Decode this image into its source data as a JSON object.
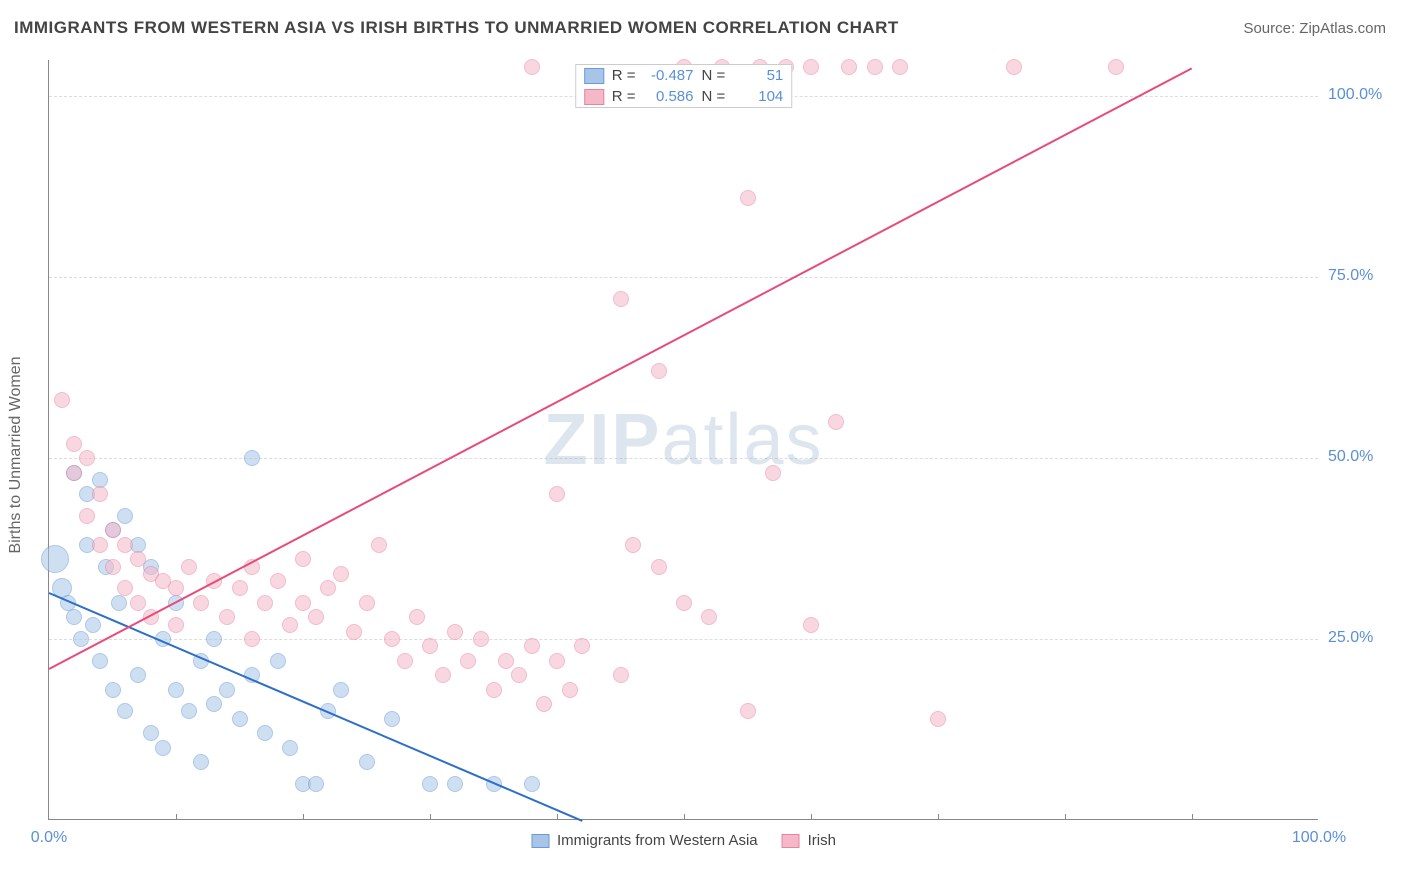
{
  "title": "IMMIGRANTS FROM WESTERN ASIA VS IRISH BIRTHS TO UNMARRIED WOMEN CORRELATION CHART",
  "source": "Source: ZipAtlas.com",
  "y_axis_label": "Births to Unmarried Women",
  "watermark_bold": "ZIP",
  "watermark_light": "atlas",
  "chart": {
    "type": "scatter",
    "xlim": [
      0,
      100
    ],
    "ylim": [
      0,
      105
    ],
    "x_ticks": [
      0,
      100
    ],
    "x_tick_labels": [
      "0.0%",
      "100.0%"
    ],
    "y_ticks": [
      25,
      50,
      75,
      100
    ],
    "y_tick_labels": [
      "25.0%",
      "50.0%",
      "75.0%",
      "100.0%"
    ],
    "x_minor_ticks": [
      10,
      20,
      30,
      40,
      50,
      60,
      70,
      80,
      90
    ],
    "background_color": "#ffffff",
    "grid_color": "#dddddd",
    "axis_color": "#888888",
    "tick_label_color": "#5b8fd6"
  },
  "series": [
    {
      "name": "Immigrants from Western Asia",
      "short": "western_asia",
      "marker_color": "#a8c5e8",
      "marker_border": "#6a9bd8",
      "marker_fill_opacity": 0.55,
      "marker_radius": 8,
      "line_color": "#2c6fc9",
      "R": "-0.487",
      "N": "51",
      "regression": {
        "x1": 0,
        "y1": 31.5,
        "x2": 42,
        "y2": 0
      },
      "points": [
        {
          "x": 0.5,
          "y": 36,
          "r": 14
        },
        {
          "x": 1,
          "y": 32,
          "r": 10
        },
        {
          "x": 1.5,
          "y": 30,
          "r": 8
        },
        {
          "x": 2,
          "y": 48,
          "r": 8
        },
        {
          "x": 2,
          "y": 28,
          "r": 8
        },
        {
          "x": 2.5,
          "y": 25,
          "r": 8
        },
        {
          "x": 3,
          "y": 45,
          "r": 8
        },
        {
          "x": 3,
          "y": 38,
          "r": 8
        },
        {
          "x": 3.5,
          "y": 27,
          "r": 8
        },
        {
          "x": 4,
          "y": 47,
          "r": 8
        },
        {
          "x": 4,
          "y": 22,
          "r": 8
        },
        {
          "x": 4.5,
          "y": 35,
          "r": 8
        },
        {
          "x": 5,
          "y": 40,
          "r": 8
        },
        {
          "x": 5,
          "y": 18,
          "r": 8
        },
        {
          "x": 5.5,
          "y": 30,
          "r": 8
        },
        {
          "x": 6,
          "y": 42,
          "r": 8
        },
        {
          "x": 6,
          "y": 15,
          "r": 8
        },
        {
          "x": 7,
          "y": 38,
          "r": 8
        },
        {
          "x": 7,
          "y": 20,
          "r": 8
        },
        {
          "x": 8,
          "y": 35,
          "r": 8
        },
        {
          "x": 8,
          "y": 12,
          "r": 8
        },
        {
          "x": 9,
          "y": 25,
          "r": 8
        },
        {
          "x": 9,
          "y": 10,
          "r": 8
        },
        {
          "x": 10,
          "y": 30,
          "r": 8
        },
        {
          "x": 10,
          "y": 18,
          "r": 8
        },
        {
          "x": 11,
          "y": 15,
          "r": 8
        },
        {
          "x": 12,
          "y": 22,
          "r": 8
        },
        {
          "x": 12,
          "y": 8,
          "r": 8
        },
        {
          "x": 13,
          "y": 25,
          "r": 8
        },
        {
          "x": 13,
          "y": 16,
          "r": 8
        },
        {
          "x": 14,
          "y": 18,
          "r": 8
        },
        {
          "x": 15,
          "y": 14,
          "r": 8
        },
        {
          "x": 16,
          "y": 20,
          "r": 8
        },
        {
          "x": 16,
          "y": 50,
          "r": 8
        },
        {
          "x": 17,
          "y": 12,
          "r": 8
        },
        {
          "x": 18,
          "y": 22,
          "r": 8
        },
        {
          "x": 19,
          "y": 10,
          "r": 8
        },
        {
          "x": 20,
          "y": 5,
          "r": 8
        },
        {
          "x": 21,
          "y": 5,
          "r": 8
        },
        {
          "x": 22,
          "y": 15,
          "r": 8
        },
        {
          "x": 23,
          "y": 18,
          "r": 8
        },
        {
          "x": 25,
          "y": 8,
          "r": 8
        },
        {
          "x": 27,
          "y": 14,
          "r": 8
        },
        {
          "x": 30,
          "y": 5,
          "r": 8
        },
        {
          "x": 32,
          "y": 5,
          "r": 8
        },
        {
          "x": 35,
          "y": 5,
          "r": 8
        },
        {
          "x": 38,
          "y": 5,
          "r": 8
        }
      ]
    },
    {
      "name": "Irish",
      "short": "irish",
      "marker_color": "#f5b8c9",
      "marker_border": "#e8849f",
      "marker_fill_opacity": 0.55,
      "marker_radius": 8,
      "line_color": "#e84a7a",
      "R": "0.586",
      "N": "104",
      "regression": {
        "x1": 0,
        "y1": 21,
        "x2": 90,
        "y2": 104
      },
      "points": [
        {
          "x": 1,
          "y": 58,
          "r": 8
        },
        {
          "x": 2,
          "y": 52,
          "r": 8
        },
        {
          "x": 2,
          "y": 48,
          "r": 8
        },
        {
          "x": 3,
          "y": 50,
          "r": 8
        },
        {
          "x": 3,
          "y": 42,
          "r": 8
        },
        {
          "x": 4,
          "y": 45,
          "r": 8
        },
        {
          "x": 4,
          "y": 38,
          "r": 8
        },
        {
          "x": 5,
          "y": 40,
          "r": 8
        },
        {
          "x": 5,
          "y": 35,
          "r": 8
        },
        {
          "x": 6,
          "y": 38,
          "r": 8
        },
        {
          "x": 6,
          "y": 32,
          "r": 8
        },
        {
          "x": 7,
          "y": 36,
          "r": 8
        },
        {
          "x": 7,
          "y": 30,
          "r": 8
        },
        {
          "x": 8,
          "y": 34,
          "r": 8
        },
        {
          "x": 8,
          "y": 28,
          "r": 8
        },
        {
          "x": 9,
          "y": 33,
          "r": 8
        },
        {
          "x": 10,
          "y": 32,
          "r": 8
        },
        {
          "x": 10,
          "y": 27,
          "r": 8
        },
        {
          "x": 11,
          "y": 35,
          "r": 8
        },
        {
          "x": 12,
          "y": 30,
          "r": 8
        },
        {
          "x": 13,
          "y": 33,
          "r": 8
        },
        {
          "x": 14,
          "y": 28,
          "r": 8
        },
        {
          "x": 15,
          "y": 32,
          "r": 8
        },
        {
          "x": 16,
          "y": 35,
          "r": 8
        },
        {
          "x": 16,
          "y": 25,
          "r": 8
        },
        {
          "x": 17,
          "y": 30,
          "r": 8
        },
        {
          "x": 18,
          "y": 33,
          "r": 8
        },
        {
          "x": 19,
          "y": 27,
          "r": 8
        },
        {
          "x": 20,
          "y": 36,
          "r": 8
        },
        {
          "x": 20,
          "y": 30,
          "r": 8
        },
        {
          "x": 21,
          "y": 28,
          "r": 8
        },
        {
          "x": 22,
          "y": 32,
          "r": 8
        },
        {
          "x": 23,
          "y": 34,
          "r": 8
        },
        {
          "x": 24,
          "y": 26,
          "r": 8
        },
        {
          "x": 25,
          "y": 30,
          "r": 8
        },
        {
          "x": 26,
          "y": 38,
          "r": 8
        },
        {
          "x": 27,
          "y": 25,
          "r": 8
        },
        {
          "x": 28,
          "y": 22,
          "r": 8
        },
        {
          "x": 29,
          "y": 28,
          "r": 8
        },
        {
          "x": 30,
          "y": 24,
          "r": 8
        },
        {
          "x": 31,
          "y": 20,
          "r": 8
        },
        {
          "x": 32,
          "y": 26,
          "r": 8
        },
        {
          "x": 33,
          "y": 22,
          "r": 8
        },
        {
          "x": 34,
          "y": 25,
          "r": 8
        },
        {
          "x": 35,
          "y": 18,
          "r": 8
        },
        {
          "x": 36,
          "y": 22,
          "r": 8
        },
        {
          "x": 37,
          "y": 20,
          "r": 8
        },
        {
          "x": 38,
          "y": 24,
          "r": 8
        },
        {
          "x": 38,
          "y": 104,
          "r": 8
        },
        {
          "x": 39,
          "y": 16,
          "r": 8
        },
        {
          "x": 40,
          "y": 22,
          "r": 8
        },
        {
          "x": 40,
          "y": 45,
          "r": 8
        },
        {
          "x": 41,
          "y": 18,
          "r": 8
        },
        {
          "x": 42,
          "y": 24,
          "r": 8
        },
        {
          "x": 45,
          "y": 20,
          "r": 8
        },
        {
          "x": 45,
          "y": 72,
          "r": 8
        },
        {
          "x": 46,
          "y": 38,
          "r": 8
        },
        {
          "x": 48,
          "y": 35,
          "r": 8
        },
        {
          "x": 48,
          "y": 62,
          "r": 8
        },
        {
          "x": 50,
          "y": 30,
          "r": 8
        },
        {
          "x": 50,
          "y": 104,
          "r": 8
        },
        {
          "x": 52,
          "y": 28,
          "r": 8
        },
        {
          "x": 53,
          "y": 104,
          "r": 8
        },
        {
          "x": 55,
          "y": 86,
          "r": 8
        },
        {
          "x": 55,
          "y": 15,
          "r": 8
        },
        {
          "x": 56,
          "y": 104,
          "r": 8
        },
        {
          "x": 57,
          "y": 48,
          "r": 8
        },
        {
          "x": 58,
          "y": 104,
          "r": 8
        },
        {
          "x": 60,
          "y": 27,
          "r": 8
        },
        {
          "x": 60,
          "y": 104,
          "r": 8
        },
        {
          "x": 62,
          "y": 55,
          "r": 8
        },
        {
          "x": 63,
          "y": 104,
          "r": 8
        },
        {
          "x": 65,
          "y": 104,
          "r": 8
        },
        {
          "x": 67,
          "y": 104,
          "r": 8
        },
        {
          "x": 70,
          "y": 14,
          "r": 8
        },
        {
          "x": 76,
          "y": 104,
          "r": 8
        },
        {
          "x": 84,
          "y": 104,
          "r": 8
        }
      ]
    }
  ],
  "legend": {
    "R_label": "R =",
    "N_label": "N ="
  },
  "x_legend": [
    {
      "label": "Immigrants from Western Asia",
      "fill": "#a8c5e8",
      "border": "#6a9bd8"
    },
    {
      "label": "Irish",
      "fill": "#f5b8c9",
      "border": "#e8849f"
    }
  ]
}
